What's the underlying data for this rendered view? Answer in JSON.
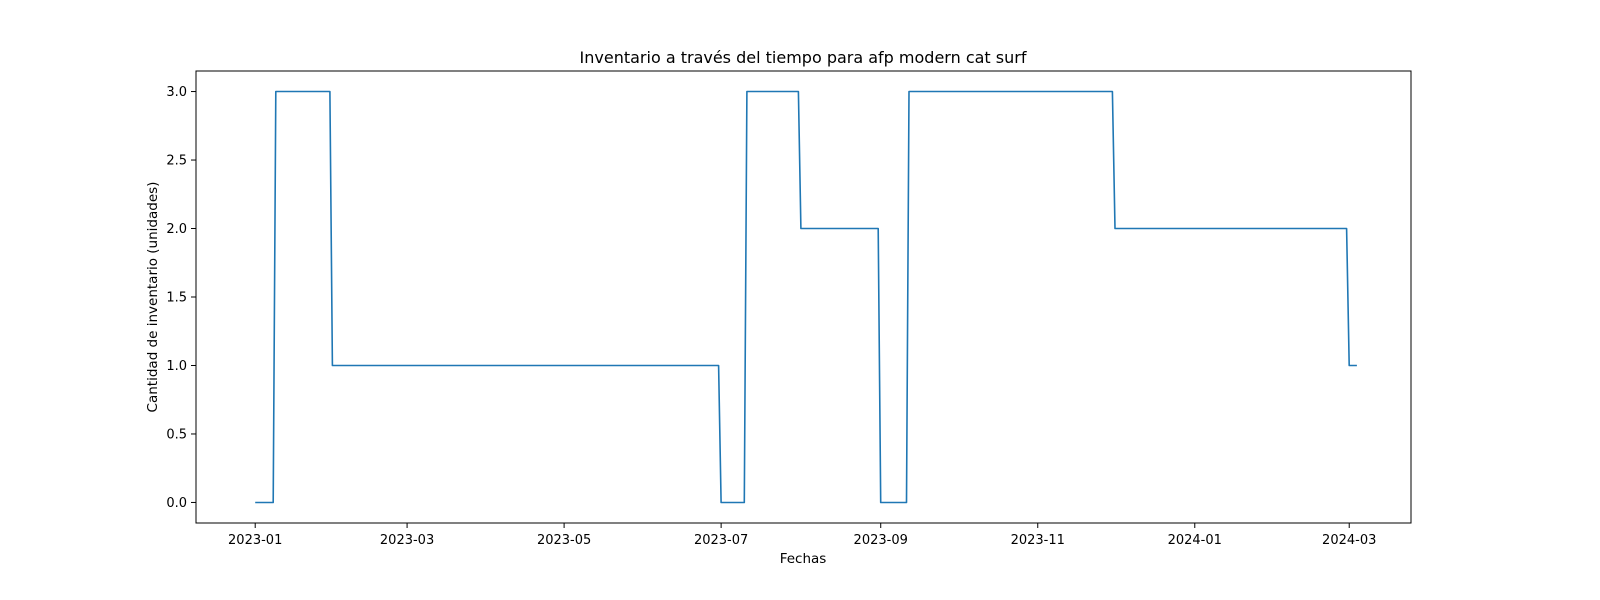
{
  "chart_data": {
    "type": "line",
    "title": "Inventario a través del tiempo para afp modern cat surf",
    "xlabel": "Fechas",
    "ylabel": "Cantidad de inventario (unidades)",
    "x_axis_type": "date",
    "xlim": [
      "2022-12-09",
      "2024-03-25"
    ],
    "ylim": [
      -0.15,
      3.15
    ],
    "grid": false,
    "line_color": "#1f77b4",
    "x_ticks": [
      "2023-01",
      "2023-03",
      "2023-05",
      "2023-07",
      "2023-09",
      "2023-11",
      "2024-01",
      "2024-03"
    ],
    "y_ticks": [
      "0.0",
      "0.5",
      "1.0",
      "1.5",
      "2.0",
      "2.5",
      "3.0"
    ],
    "series": [
      {
        "x": [
          "2023-01-01",
          "2023-01-08",
          "2023-01-09",
          "2023-01-30",
          "2023-01-31",
          "2023-06-30",
          "2023-07-01",
          "2023-07-10",
          "2023-07-11",
          "2023-07-31",
          "2023-08-01",
          "2023-08-31",
          "2023-09-01",
          "2023-09-11",
          "2023-09-12",
          "2023-11-30",
          "2023-12-01",
          "2024-02-29",
          "2024-03-01",
          "2024-03-04"
        ],
        "y": [
          0,
          0,
          3,
          3,
          1,
          1,
          0,
          0,
          3,
          3,
          2,
          2,
          0,
          0,
          3,
          3,
          2,
          2,
          1,
          1
        ]
      }
    ]
  }
}
